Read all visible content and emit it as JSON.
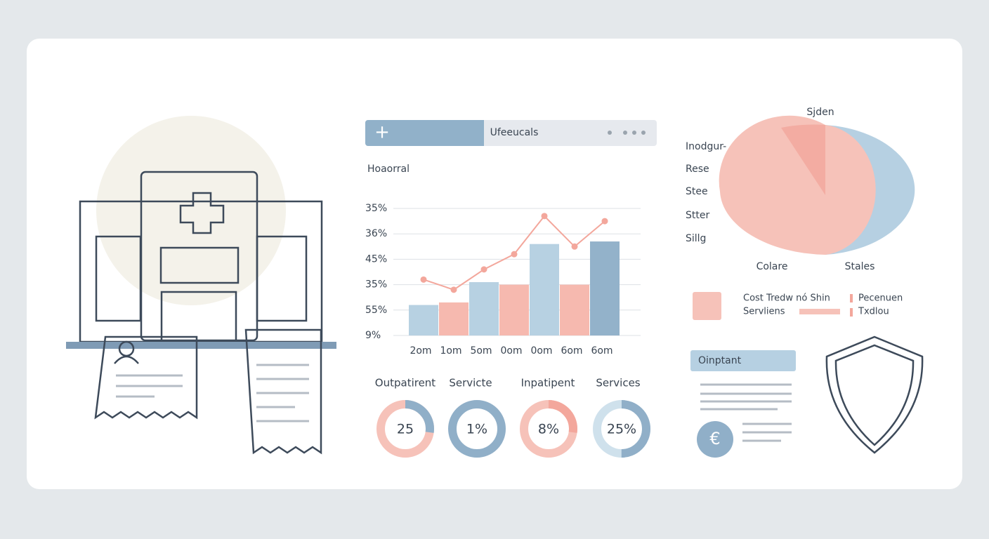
{
  "toolbar": {
    "title": "Ufeeucals"
  },
  "chart_data": {
    "type": "bar",
    "title": "Hoaorral",
    "categories": [
      "2om",
      "1om",
      "5om",
      "0om",
      "0om",
      "6om",
      "6om"
    ],
    "values": [
      1.2,
      1.3,
      2.1,
      2.0,
      3.6,
      2.0,
      3.7
    ],
    "colors": [
      "#b7d1e2",
      "#f6b9af",
      "#b7d1e2",
      "#f6b9af",
      "#b7d1e2",
      "#f6b9af",
      "#93b2ca"
    ],
    "line": {
      "color": "#f3a79c",
      "values": [
        2.2,
        1.8,
        2.6,
        3.2,
        4.7,
        3.5,
        4.5
      ]
    },
    "ylim": [
      0,
      5
    ],
    "yticks": [
      {
        "value": 5,
        "label": "35%"
      },
      {
        "value": 4,
        "label": "36%"
      },
      {
        "value": 3,
        "label": "45%"
      },
      {
        "value": 2,
        "label": "35%"
      },
      {
        "value": 1,
        "label": "55%"
      },
      {
        "value": 0,
        "label": "9%"
      }
    ],
    "grid": true
  },
  "donuts": {
    "labels": [
      "Outpatirent",
      "Servicte",
      "Inpatipent",
      "Services"
    ],
    "values": [
      "25",
      "1%",
      "8%",
      "25%"
    ]
  },
  "pie": {
    "top": "Sjden",
    "left_labels": [
      "Inodgur-",
      "Rese",
      "Stee",
      "Stter",
      "Sillg"
    ],
    "bottom": [
      "Colare",
      "Stales"
    ]
  },
  "legend": {
    "items": [
      "Cost Tredw nó Shin",
      "Servliens",
      "Pecenuen",
      "Txdlou"
    ]
  },
  "card": {
    "title": "Oinptant"
  }
}
